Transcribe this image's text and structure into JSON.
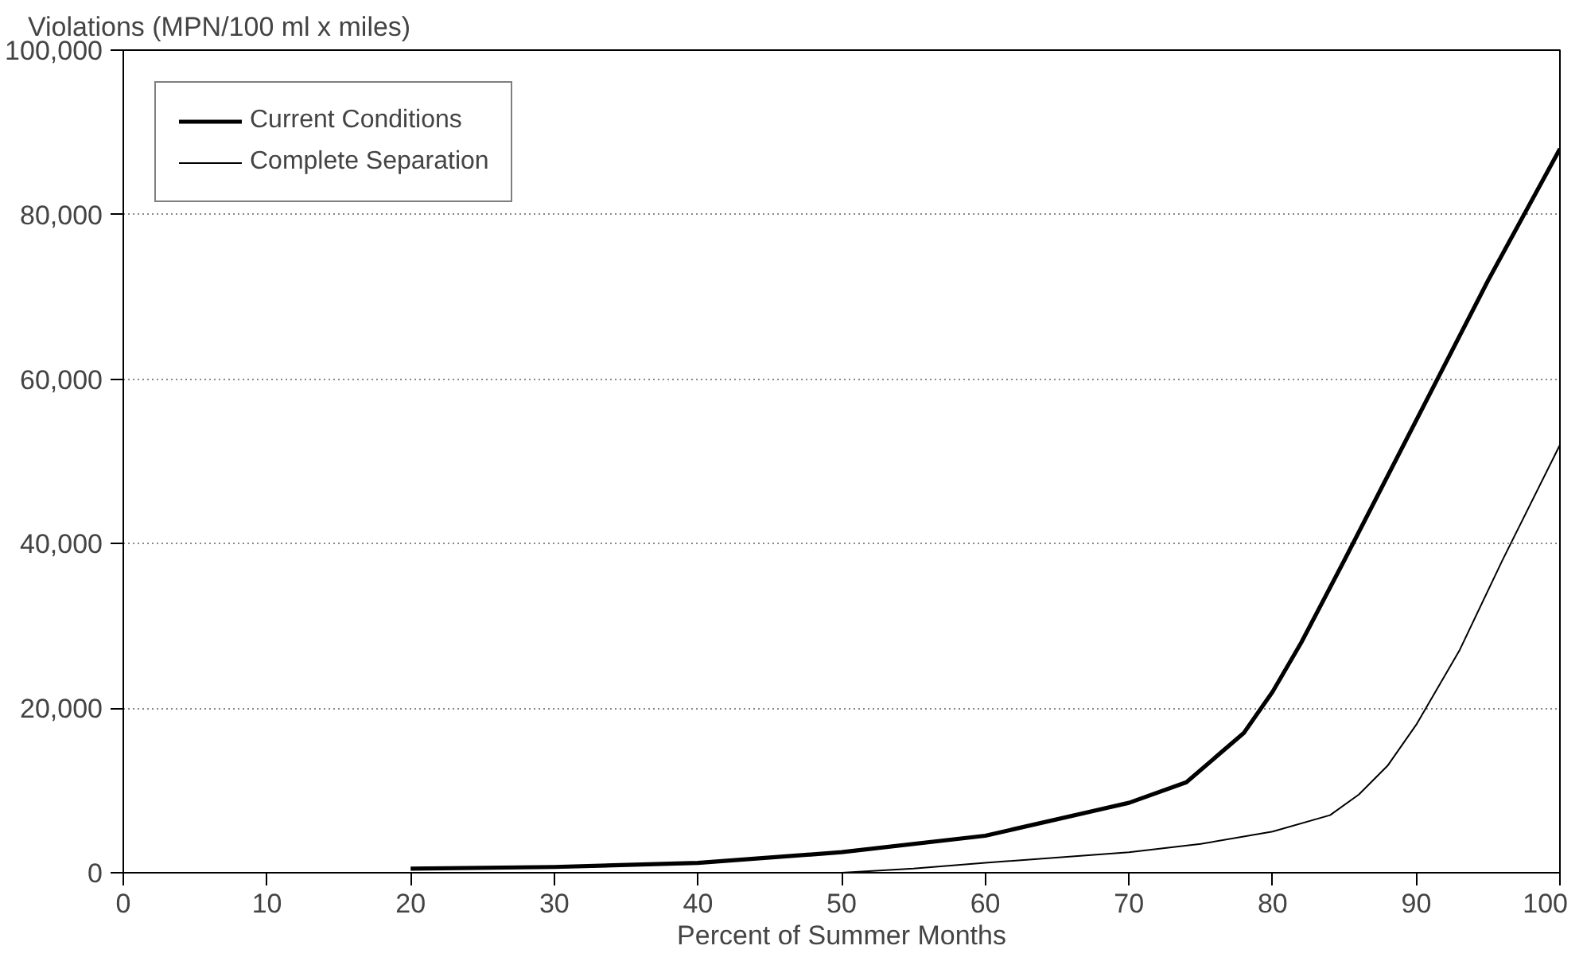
{
  "chart_data": {
    "type": "line",
    "ylabel": "Violations (MPN/100 ml x miles)",
    "xlabel": "Percent of Summer Months",
    "xlim": [
      0,
      100
    ],
    "xticks": [
      0,
      10,
      20,
      30,
      40,
      50,
      60,
      70,
      80,
      90,
      100
    ],
    "ylim": [
      0,
      100000
    ],
    "yticks": [
      {
        "value": 0,
        "label": "0"
      },
      {
        "value": 20000,
        "label": "20,000"
      },
      {
        "value": 40000,
        "label": "40,000"
      },
      {
        "value": 60000,
        "label": "60,000"
      },
      {
        "value": 80000,
        "label": "80,000"
      },
      {
        "value": 100000,
        "label": "100,000"
      }
    ],
    "grid": "y",
    "legend": "top left",
    "marker": "none",
    "line_style": "solid",
    "series": [
      {
        "name": "Current Conditions",
        "color": "#000000",
        "x": [
          20,
          30,
          40,
          50,
          60,
          70,
          74,
          78,
          80,
          82,
          85,
          90,
          95,
          100
        ],
        "values": [
          500,
          700,
          1200,
          2500,
          4500,
          8500,
          11000,
          17000,
          22000,
          28000,
          38000,
          55000,
          72000,
          88000
        ]
      },
      {
        "name": "Complete Separation",
        "color": "#000000",
        "x": [
          50,
          55,
          60,
          70,
          75,
          80,
          84,
          86,
          88,
          90,
          93,
          96,
          100
        ],
        "values": [
          0,
          500,
          1200,
          2500,
          3500,
          5000,
          7000,
          9500,
          13000,
          18000,
          27000,
          38000,
          52000
        ]
      }
    ]
  }
}
